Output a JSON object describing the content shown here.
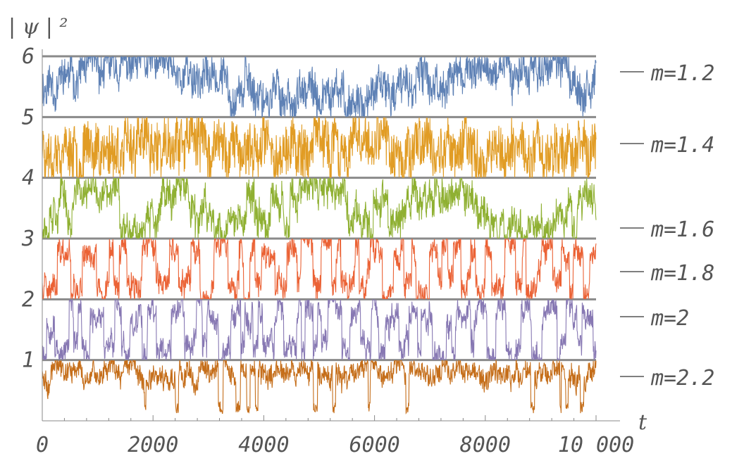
{
  "chart_data": {
    "type": "line",
    "title": "",
    "xlabel": "t",
    "ylabel": "| ψ | ²",
    "xlim": [
      0,
      10000
    ],
    "ylim": [
      0,
      6
    ],
    "x_ticks": [
      "0",
      "2000",
      "4000",
      "6000",
      "8000",
      "10 000"
    ],
    "y_ticks": [
      "1",
      "2",
      "3",
      "4",
      "5",
      "6"
    ],
    "band_separators": [
      1,
      2,
      3,
      4,
      5,
      6
    ],
    "grid": false,
    "legend_placement": "right",
    "series": [
      {
        "name": "m=1.2",
        "color": "#5E81B5",
        "band": [
          5,
          6
        ],
        "baseline": 5.55,
        "amplitude": 0.45,
        "seed": 11,
        "style": "noisy-slow-wave"
      },
      {
        "name": "m=1.4",
        "color": "#E19C24",
        "band": [
          4,
          5
        ],
        "baseline": 4.5,
        "amplitude": 0.45,
        "seed": 23,
        "style": "noisy"
      },
      {
        "name": "m=1.6",
        "color": "#8FB032",
        "band": [
          3,
          4
        ],
        "baseline": 3.5,
        "amplitude": 0.45,
        "seed": 37,
        "style": "noisy-steps"
      },
      {
        "name": "m=1.8",
        "color": "#EB6235",
        "band": [
          2,
          3
        ],
        "baseline": 2.5,
        "amplitude": 0.48,
        "seed": 41,
        "style": "square-noisy"
      },
      {
        "name": "m=2",
        "color": "#8778B3",
        "band": [
          1,
          2
        ],
        "baseline": 1.5,
        "amplitude": 0.48,
        "seed": 53,
        "style": "square-noisy"
      },
      {
        "name": "m=2.2",
        "color": "#C56E1A",
        "band": [
          0,
          1
        ],
        "baseline": 0.8,
        "amplitude": 0.2,
        "seed": 67,
        "style": "dips"
      }
    ]
  }
}
